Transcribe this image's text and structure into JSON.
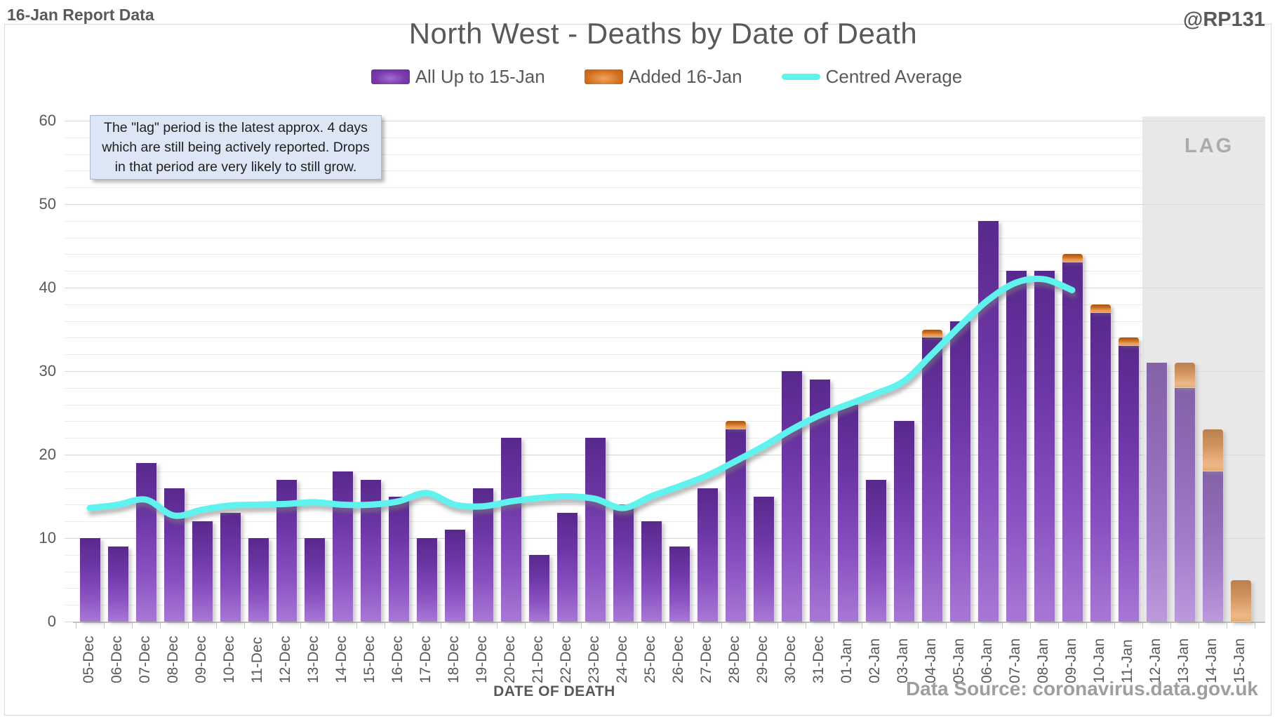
{
  "header": {
    "report_label": "16-Jan Report Data",
    "watermark": "@RP131"
  },
  "title": "North West - Deaths by Date of Death",
  "legend": {
    "bars_label": "All Up to 15-Jan",
    "added_label": "Added 16-Jan",
    "average_label": "Centred Average"
  },
  "annotation": {
    "lines": [
      "The \"lag\" period is the latest approx. 4 days",
      "which are still being actively reported. Drops",
      "in that period are very likely to still grow."
    ]
  },
  "footer": {
    "x_axis_title": "DATE OF DEATH",
    "data_source": "Data Source: coronavirus.data.gov.uk"
  },
  "colors": {
    "purple_top": "#58298c",
    "purple_bottom": "#a878d6",
    "orange_top": "#a5530f",
    "orange_bottom": "#efa45f",
    "average_line": "#5ff2ee",
    "lag_band": "#e9e9e9",
    "annotation_bg": "#dde6f4",
    "text_gray": "#595959"
  },
  "chart_data": {
    "type": "bar",
    "title": "North West - Deaths by Date of Death",
    "xlabel": "DATE OF DEATH",
    "ylabel": "",
    "ylim": [
      0,
      60
    ],
    "y_tick_step": 10,
    "y_minor_step": 2,
    "grid": true,
    "legend_position": "top",
    "categories": [
      "05-Dec",
      "06-Dec",
      "07-Dec",
      "08-Dec",
      "09-Dec",
      "10-Dec",
      "11-Dec",
      "12-Dec",
      "13-Dec",
      "14-Dec",
      "15-Dec",
      "16-Dec",
      "17-Dec",
      "18-Dec",
      "19-Dec",
      "20-Dec",
      "21-Dec",
      "22-Dec",
      "23-Dec",
      "24-Dec",
      "25-Dec",
      "26-Dec",
      "27-Dec",
      "28-Dec",
      "29-Dec",
      "30-Dec",
      "31-Dec",
      "01-Jan",
      "02-Jan",
      "03-Jan",
      "04-Jan",
      "05-Jan",
      "06-Jan",
      "07-Jan",
      "08-Jan",
      "09-Jan",
      "10-Jan",
      "11-Jan",
      "12-Jan",
      "13-Jan",
      "14-Jan",
      "15-Jan"
    ],
    "series": [
      {
        "name": "All Up to 15-Jan",
        "type": "bar",
        "values": [
          10,
          9,
          19,
          16,
          12,
          13,
          10,
          17,
          10,
          18,
          17,
          15,
          10,
          11,
          16,
          22,
          8,
          13,
          22,
          14,
          12,
          9,
          16,
          23,
          15,
          30,
          29,
          26,
          17,
          24,
          34,
          36,
          48,
          42,
          42,
          43,
          37,
          33,
          31,
          28,
          18,
          0
        ]
      },
      {
        "name": "Added 16-Jan",
        "type": "bar-stacked",
        "values": [
          0,
          0,
          0,
          0,
          0,
          0,
          0,
          0,
          0,
          0,
          0,
          0,
          0,
          0,
          0,
          0,
          0,
          0,
          0,
          0,
          0,
          0,
          0,
          1,
          0,
          0,
          0,
          0,
          0,
          0,
          1,
          0,
          0,
          0,
          0,
          1,
          1,
          1,
          0,
          3,
          5,
          5
        ]
      },
      {
        "name": "Centred Average",
        "type": "line",
        "values": [
          13.6,
          14.0,
          14.6,
          12.7,
          13.4,
          13.9,
          14.0,
          14.1,
          14.3,
          14.0,
          14.0,
          14.4,
          15.4,
          14.0,
          13.8,
          14.4,
          14.8,
          15.0,
          14.7,
          13.6,
          15.0,
          16.2,
          17.5,
          19.2,
          21.0,
          23.0,
          24.7,
          26.0,
          27.3,
          28.8,
          32.0,
          35.4,
          38.5,
          40.6,
          41.0,
          39.7,
          null,
          null,
          null,
          null,
          null,
          null
        ]
      }
    ],
    "lag_band": {
      "label": "LAG",
      "start_category": "12-Jan",
      "end_category": "15-Jan"
    }
  }
}
